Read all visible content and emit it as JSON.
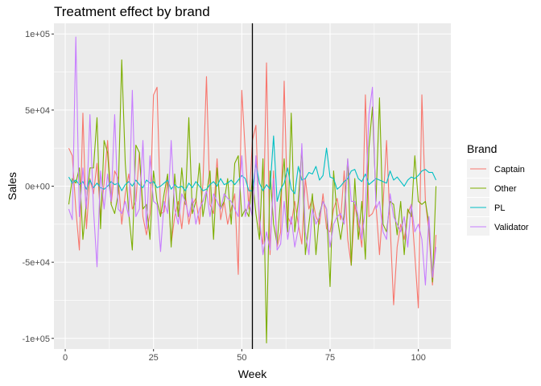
{
  "chart_data": {
    "type": "line",
    "title": "Treatment effect by brand",
    "xlabel": "Week",
    "ylabel": "Sales",
    "xlim": [
      -3.2,
      109.2
    ],
    "ylim": [
      -107000,
      107000
    ],
    "x_ticks": [
      0,
      25,
      50,
      75,
      100
    ],
    "x_tick_labels": [
      "0",
      "25",
      "50",
      "75",
      "100"
    ],
    "y_ticks": [
      100000,
      50000,
      0,
      -50000,
      -100000
    ],
    "y_tick_labels": [
      "1e+05",
      "5e+04",
      "0e+00",
      "-5e+04",
      "-1e+05"
    ],
    "grid": true,
    "vline_x": 53,
    "legend": {
      "title": "Brand",
      "position": "right"
    },
    "colors": {
      "panel": "#EBEBEB",
      "grid_major": "#FFFFFF",
      "vline": "#000000",
      "Captain": "#F8766D",
      "Other": "#7CAE00",
      "PL": "#00BFC4",
      "Validator": "#C77CFF"
    },
    "x": [
      1,
      2,
      3,
      4,
      5,
      6,
      7,
      8,
      9,
      10,
      11,
      12,
      13,
      14,
      15,
      16,
      17,
      18,
      19,
      20,
      21,
      22,
      23,
      24,
      25,
      26,
      27,
      28,
      29,
      30,
      31,
      32,
      33,
      34,
      35,
      36,
      37,
      38,
      39,
      40,
      41,
      42,
      43,
      44,
      45,
      46,
      47,
      48,
      49,
      50,
      51,
      52,
      53,
      54,
      55,
      56,
      57,
      58,
      59,
      60,
      61,
      62,
      63,
      64,
      65,
      66,
      67,
      68,
      69,
      70,
      71,
      72,
      73,
      74,
      75,
      76,
      77,
      78,
      79,
      80,
      81,
      82,
      83,
      84,
      85,
      86,
      87,
      88,
      89,
      90,
      91,
      92,
      93,
      94,
      95,
      96,
      97,
      98,
      99,
      100,
      101,
      102,
      103,
      104,
      105
    ],
    "series": [
      {
        "name": "Captain",
        "values": [
          25000,
          20000,
          -15000,
          -42000,
          48000,
          -28000,
          5000,
          -5000,
          15000,
          -20000,
          2000,
          30000,
          -12000,
          10000,
          5000,
          -25000,
          -5000,
          8000,
          -15000,
          -10000,
          22000,
          -20000,
          -32000,
          -18000,
          60000,
          65000,
          -18000,
          -17000,
          5000,
          -38000,
          -20000,
          -10000,
          -28000,
          -5000,
          -25000,
          -12000,
          -8000,
          -25000,
          2000,
          72000,
          -12000,
          -18000,
          18000,
          -22000,
          -10000,
          -25000,
          -15000,
          -5000,
          -58000,
          63000,
          22000,
          -15000,
          30000,
          40000,
          -28000,
          -38000,
          81000,
          -45000,
          10000,
          -40000,
          -30000,
          69000,
          -20000,
          -25000,
          -10000,
          -25000,
          -38000,
          5000,
          -15000,
          -8000,
          -20000,
          -25000,
          -5000,
          -28000,
          -30000,
          -15000,
          -8000,
          -22000,
          10000,
          -35000,
          -52000,
          -12000,
          -25000,
          -40000,
          60000,
          -20000,
          -18000,
          -12000,
          -45000,
          -12000,
          30000,
          -25000,
          -78000,
          -40000,
          -25000,
          -35000,
          -18000,
          -12000,
          -45000,
          -80000,
          60000,
          -10000,
          -30000,
          -65000,
          -32000
        ]
      },
      {
        "name": "Other",
        "values": [
          -12000,
          5000,
          2000,
          12000,
          -35000,
          -10000,
          12000,
          12000,
          45000,
          -28000,
          30000,
          22000,
          -12000,
          -18000,
          -5000,
          83000,
          15000,
          -18000,
          -42000,
          27000,
          22000,
          -15000,
          -12000,
          -35000,
          10000,
          -10000,
          -20000,
          -5000,
          8000,
          -40000,
          8000,
          -20000,
          12000,
          -12000,
          45000,
          -18000,
          -10000,
          15000,
          -20000,
          -5000,
          10000,
          -35000,
          12000,
          -15000,
          -10000,
          5000,
          -25000,
          15000,
          20000,
          -20000,
          -15000,
          -20000,
          5000,
          -18000,
          -35000,
          18000,
          -103000,
          10000,
          -25000,
          -38000,
          -8000,
          18000,
          -30000,
          48000,
          -30000,
          -10000,
          25000,
          -45000,
          -25000,
          -5000,
          -45000,
          -18000,
          -10000,
          -15000,
          -66000,
          10000,
          -20000,
          -35000,
          -18000,
          18000,
          -52000,
          5000,
          -35000,
          -10000,
          -48000,
          25000,
          52000,
          -10000,
          58000,
          -25000,
          -30000,
          -10000,
          -12000,
          -32000,
          -10000,
          -45000,
          -15000,
          -20000,
          20000,
          -10000,
          -12000,
          -10000,
          -25000,
          -63000,
          0
        ]
      },
      {
        "name": "PL",
        "values": [
          6000,
          2000,
          4000,
          1000,
          3000,
          -2000,
          4000,
          -1000,
          2000,
          -1000,
          -2000,
          0,
          3000,
          1000,
          2000,
          -3000,
          1000,
          3000,
          0,
          4000,
          1000,
          -1000,
          4000,
          2000,
          3000,
          -1000,
          0,
          2000,
          4000,
          -2000,
          1000,
          -1000,
          0,
          -3000,
          2000,
          -1000,
          3000,
          0,
          -3000,
          -2000,
          1000,
          3000,
          0,
          5000,
          1000,
          2000,
          4000,
          1000,
          4000,
          7000,
          5000,
          -3000,
          -3000,
          15000,
          2000,
          -3000,
          1000,
          -2000,
          33000,
          -10000,
          -2000,
          2000,
          12000,
          -2000,
          -5000,
          13000,
          4000,
          5000,
          9000,
          8000,
          13000,
          4000,
          7000,
          25000,
          6000,
          5000,
          -2000,
          0,
          3000,
          5000,
          10000,
          11000,
          5000,
          3000,
          8000,
          1000,
          3000,
          5000,
          4000,
          3000,
          2000,
          10000,
          4000,
          6000,
          3000,
          0,
          4000,
          6000,
          5000,
          7000,
          10000,
          11000,
          9000,
          9000,
          4000
        ]
      },
      {
        "name": "Validator",
        "values": [
          -15000,
          -22000,
          98000,
          -20000,
          12000,
          -15000,
          47000,
          -15000,
          -53000,
          10000,
          -15000,
          8000,
          -10000,
          47000,
          -15000,
          -18000,
          -10000,
          -20000,
          63000,
          -20000,
          -15000,
          30000,
          -28000,
          20000,
          -10000,
          -12000,
          -43000,
          -10000,
          -18000,
          30000,
          -15000,
          -25000,
          -5000,
          -10000,
          -20000,
          -8000,
          -25000,
          -15000,
          -10000,
          -3000,
          -20000,
          -5000,
          -10000,
          -15000,
          -5000,
          -8000,
          -10000,
          -15000,
          -20000,
          20000,
          -20000,
          -10000,
          -20000,
          20000,
          -20000,
          -45000,
          -30000,
          -42000,
          5000,
          -42000,
          -38000,
          -10000,
          -35000,
          -20000,
          -40000,
          -28000,
          28000,
          -30000,
          -45000,
          -15000,
          -25000,
          -20000,
          -10000,
          -15000,
          -40000,
          -25000,
          -20000,
          -18000,
          -25000,
          18000,
          -10000,
          -10000,
          -20000,
          -35000,
          -15000,
          47000,
          65000,
          -15000,
          -10000,
          -30000,
          -35000,
          -5000,
          -20000,
          -25000,
          -30000,
          -20000,
          -40000,
          -12000,
          -30000,
          -25000,
          -35000,
          -65000,
          -20000,
          -60000,
          -40000
        ]
      }
    ]
  }
}
